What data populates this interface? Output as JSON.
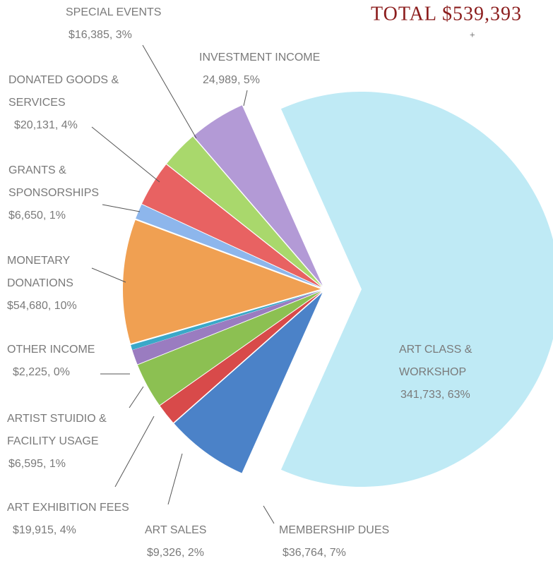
{
  "chart_data": {
    "type": "pie",
    "title": "TOTAL $539,393",
    "annotation": "+",
    "categories": [
      "ART CLASS & WORKSHOP",
      "INVESTMENT INCOME",
      "SPECIAL EVENTS",
      "DONATED GOODS & SERVICES",
      "GRANTS & SPONSORSHIPS",
      "MONETARY DONATIONS",
      "OTHER INCOME",
      "ARTIST STUIDIO & FACILITY USAGE",
      "ART EXHIBITION FEES",
      "ART SALES",
      "MEMBERSHIP DUES"
    ],
    "values": [
      341733,
      24989,
      16385,
      20131,
      6650,
      54680,
      2225,
      6595,
      19915,
      9326,
      36764
    ],
    "value_labels": [
      "341,733,  63%",
      "24,989,  5%",
      "$16,385,  3%",
      "$20,131,  4%",
      "$6,650,  1%",
      "$54,680,  10%",
      "$2,225,  0%",
      "$6,595,  1%",
      "$19,915,  4%",
      "$9,326,  2%",
      "$36,764,  7%"
    ],
    "colors": [
      "#bfeaf5",
      "#b39ad6",
      "#a9d86c",
      "#e86262",
      "#8db6ec",
      "#f0a052",
      "#3aa8c8",
      "#9a7cc0",
      "#8cc052",
      "#d84a4a",
      "#4b82c8"
    ]
  }
}
